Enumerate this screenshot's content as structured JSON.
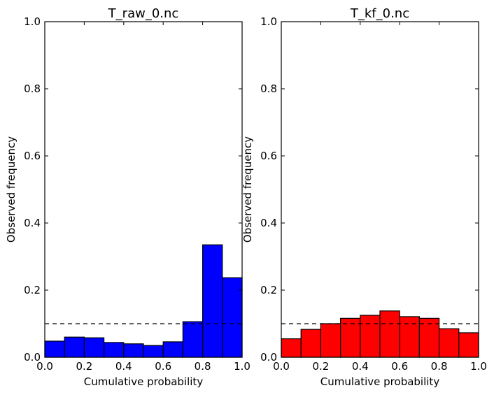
{
  "chart_data": [
    {
      "type": "bar",
      "title": "T_raw_0.nc",
      "xlabel": "Cumulative probability",
      "ylabel": "Observed frequency",
      "xlim": [
        0.0,
        1.0
      ],
      "ylim": [
        0.0,
        1.0
      ],
      "bin_edges": [
        0.0,
        0.1,
        0.2,
        0.3,
        0.4,
        0.5,
        0.6,
        0.7,
        0.8,
        0.9,
        1.0
      ],
      "values": [
        0.048,
        0.06,
        0.058,
        0.044,
        0.04,
        0.035,
        0.046,
        0.106,
        0.335,
        0.237
      ],
      "bar_color": "#0000ff",
      "reference_line": 0.1,
      "xticks": [
        "0.0",
        "0.2",
        "0.4",
        "0.6",
        "0.8",
        "1.0"
      ],
      "yticks": [
        "0.0",
        "0.2",
        "0.4",
        "0.6",
        "0.8",
        "1.0"
      ],
      "grid": false
    },
    {
      "type": "bar",
      "title": "T_kf_0.nc",
      "xlabel": "Cumulative probability",
      "ylabel": "Observed frequency",
      "xlim": [
        0.0,
        1.0
      ],
      "ylim": [
        0.0,
        1.0
      ],
      "bin_edges": [
        0.0,
        0.1,
        0.2,
        0.3,
        0.4,
        0.5,
        0.6,
        0.7,
        0.8,
        0.9,
        1.0
      ],
      "values": [
        0.055,
        0.083,
        0.1,
        0.116,
        0.125,
        0.138,
        0.121,
        0.116,
        0.085,
        0.073
      ],
      "bar_color": "#ff0000",
      "reference_line": 0.1,
      "xticks": [
        "0.0",
        "0.2",
        "0.4",
        "0.6",
        "0.8",
        "1.0"
      ],
      "yticks": [
        "0.0",
        "0.2",
        "0.4",
        "0.6",
        "0.8",
        "1.0"
      ],
      "grid": false
    }
  ]
}
